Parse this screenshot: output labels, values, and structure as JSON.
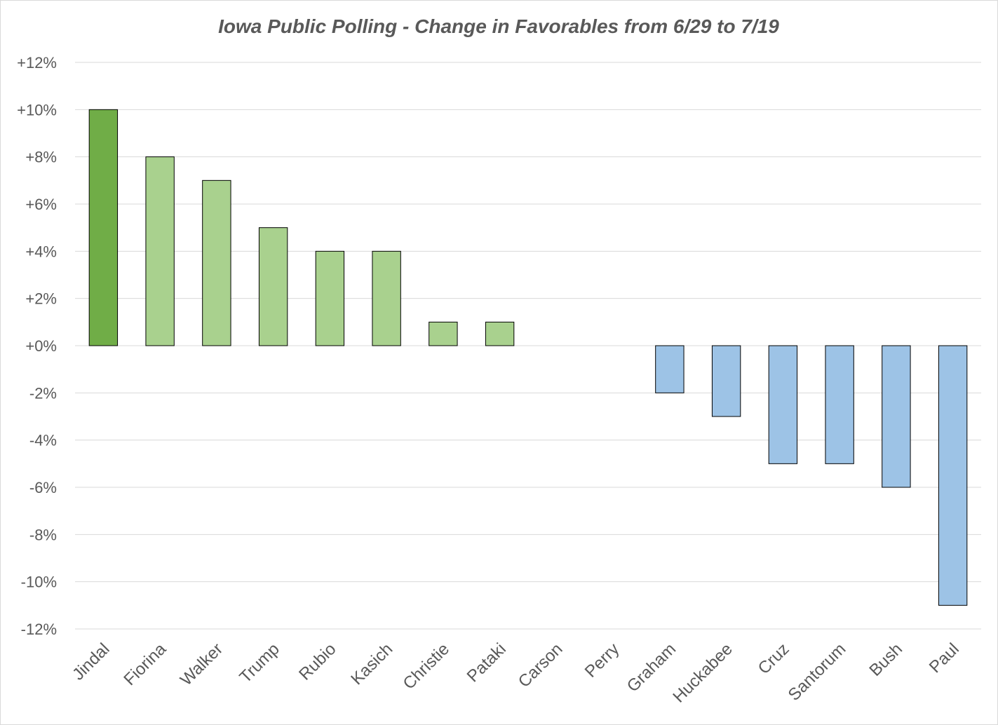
{
  "chart_data": {
    "type": "bar",
    "title": "Iowa Public Polling - Change in Favorables from 6/29 to 7/19",
    "xlabel": "",
    "ylabel": "",
    "categories": [
      "Jindal",
      "Fiorina",
      "Walker",
      "Trump",
      "Rubio",
      "Kasich",
      "Christie",
      "Pataki",
      "Carson",
      "Perry",
      "Graham",
      "Huckabee",
      "Cruz",
      "Santorum",
      "Bush",
      "Paul"
    ],
    "values": [
      10,
      8,
      7,
      5,
      4,
      4,
      1,
      1,
      0,
      0,
      -2,
      -3,
      -5,
      -5,
      -6,
      -11
    ],
    "ylim": [
      -12,
      12
    ],
    "yticks": [
      12,
      10,
      8,
      6,
      4,
      2,
      0,
      -2,
      -4,
      -6,
      -8,
      -10,
      -12
    ],
    "ytick_labels": [
      "+12%",
      "+10%",
      "+8%",
      "+6%",
      "+4%",
      "+2%",
      "+0%",
      "-2%",
      "-4%",
      "-6%",
      "-8%",
      "-10%",
      "-12%"
    ],
    "grid": true,
    "legend": "none",
    "colors": {
      "highlight_positive": "#70ad47",
      "positive": "#a9d18e",
      "negative": "#9dc3e6",
      "text": "#595959",
      "grid": "#d9d9d9"
    }
  }
}
